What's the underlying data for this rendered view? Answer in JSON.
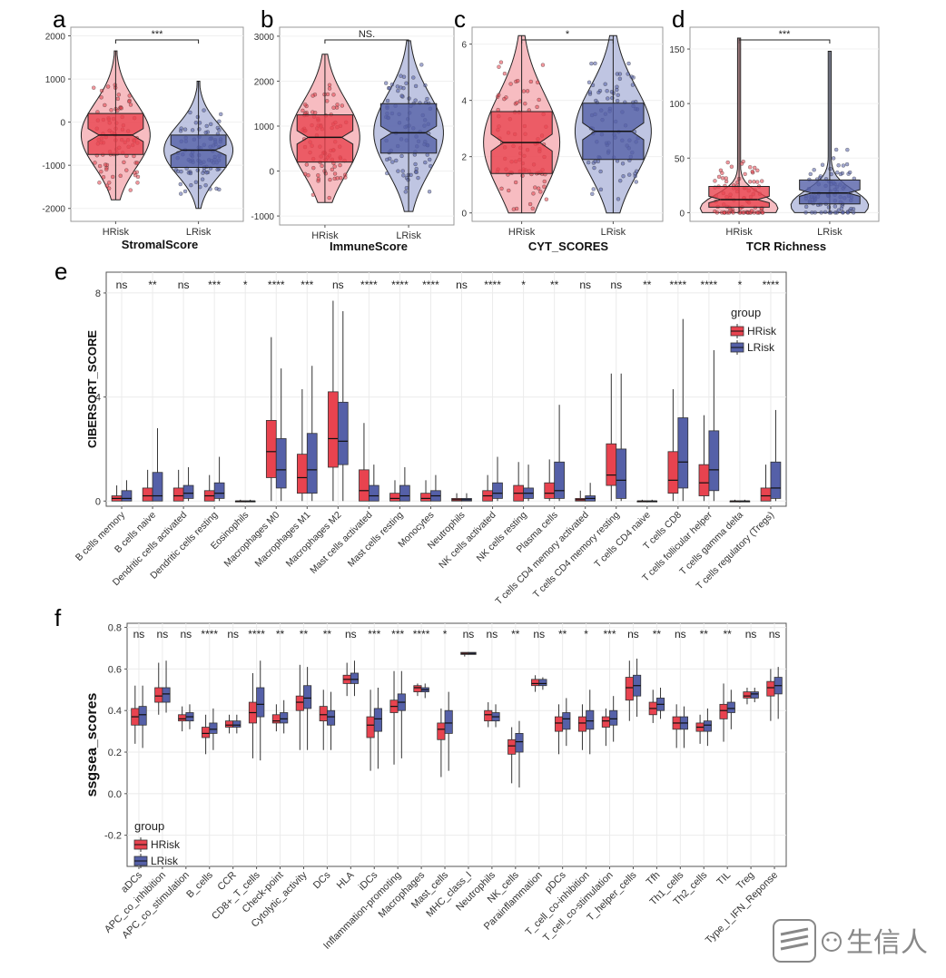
{
  "colors": {
    "hrisk": "#e8434f",
    "lrisk": "#5560a8",
    "hrisk_light": "#f4a6ac",
    "lrisk_light": "#aab2d8",
    "panel_bg": "#ffffff",
    "grid": "#ebebeb"
  },
  "watermark": {
    "text": "生信人",
    "icon": "wechat-logo-icon"
  },
  "panels": {
    "a": {
      "letter": "a",
      "title": "StromalScore",
      "sig": "***",
      "categories": [
        "HRisk",
        "LRisk"
      ],
      "yticks": [
        -2000,
        -1000,
        0,
        1000,
        2000
      ],
      "ylim": [
        -2300,
        2200
      ],
      "groups": [
        {
          "name": "HRisk",
          "min": -1800,
          "q1": -750,
          "median": -300,
          "q3": 200,
          "max": 1650,
          "notch": 150
        },
        {
          "name": "LRisk",
          "min": -2000,
          "q1": -1050,
          "median": -650,
          "q3": -300,
          "max": 950,
          "notch": 120
        }
      ]
    },
    "b": {
      "letter": "b",
      "title": "ImmuneScore",
      "sig": "NS.",
      "categories": [
        "HRisk",
        "LRisk"
      ],
      "yticks": [
        -1000,
        0,
        1000,
        2000,
        3000
      ],
      "ylim": [
        -1200,
        3200
      ],
      "groups": [
        {
          "name": "HRisk",
          "min": -700,
          "q1": 200,
          "median": 750,
          "q3": 1250,
          "max": 2600,
          "notch": 150
        },
        {
          "name": "LRisk",
          "min": -900,
          "q1": 400,
          "median": 850,
          "q3": 1500,
          "max": 2900,
          "notch": 150
        }
      ]
    },
    "c": {
      "letter": "c",
      "title": "CYT_SCORES",
      "sig": "*",
      "categories": [
        "HRisk",
        "LRisk"
      ],
      "yticks": [
        0,
        2,
        4,
        6
      ],
      "ylim": [
        -0.3,
        6.6
      ],
      "groups": [
        {
          "name": "HRisk",
          "min": 0,
          "q1": 1.4,
          "median": 2.5,
          "q3": 3.6,
          "max": 6.3,
          "notch": 0.3
        },
        {
          "name": "LRisk",
          "min": 0,
          "q1": 1.9,
          "median": 2.9,
          "q3": 3.9,
          "max": 6.3,
          "notch": 0.3
        }
      ]
    },
    "d": {
      "letter": "d",
      "title": "TCR Richness",
      "sig": "***",
      "categories": [
        "HRisk",
        "LRisk"
      ],
      "yticks": [
        0,
        50,
        100,
        150
      ],
      "ylim": [
        -8,
        170
      ],
      "groups": [
        {
          "name": "HRisk",
          "min": 0,
          "q1": 5,
          "median": 12,
          "q3": 24,
          "max": 160,
          "notch": 3
        },
        {
          "name": "LRisk",
          "min": 0,
          "q1": 8,
          "median": 18,
          "q3": 30,
          "max": 148,
          "notch": 3
        }
      ]
    }
  },
  "panel_e": {
    "letter": "e",
    "ylabel": "CIBERSORT_SCORE",
    "yticks": [
      0,
      4,
      8
    ],
    "ylim": [
      -0.2,
      8.8
    ],
    "legend": {
      "title": "group",
      "items": [
        "HRisk",
        "LRisk"
      ]
    },
    "categories": [
      "B cells memory",
      "B cells naive",
      "Dendritic cells activated",
      "Dendritic cells resting",
      "Eosinophils",
      "Macrophages M0",
      "Macrophages M1",
      "Macrophages M2",
      "Mast cells activated",
      "Mast cells resting",
      "Monocytes",
      "Neutrophils",
      "NK cells activated",
      "NK cells resting",
      "Plasma cells",
      "T cells CD4 memory activated",
      "T cells CD4 memory resting",
      "T cells CD4 naive",
      "T cells CD8",
      "T cells follicular helper",
      "T cells gamma delta",
      "T cells regulatory (Tregs)"
    ],
    "sig": [
      "ns",
      "**",
      "ns",
      "***",
      "*",
      "****",
      "***",
      "ns",
      "****",
      "****",
      "****",
      "ns",
      "****",
      "*",
      "**",
      "ns",
      "ns",
      "**",
      "****",
      "****",
      "*",
      "****"
    ],
    "hrisk": [
      [
        0,
        0,
        0.1,
        0.2,
        0.6
      ],
      [
        0,
        0,
        0.2,
        0.5,
        1.2
      ],
      [
        0,
        0,
        0.2,
        0.5,
        1.2
      ],
      [
        0,
        0,
        0.2,
        0.4,
        1.0
      ],
      [
        0,
        0,
        0,
        0,
        0.05
      ],
      [
        0,
        0.9,
        1.9,
        3.1,
        6.3
      ],
      [
        0,
        0.3,
        0.9,
        1.8,
        4.3
      ],
      [
        0,
        1.3,
        2.4,
        4.2,
        7.7
      ],
      [
        0,
        0,
        0.4,
        1.2,
        3.0
      ],
      [
        0,
        0,
        0.1,
        0.3,
        0.8
      ],
      [
        0,
        0,
        0.1,
        0.3,
        0.8
      ],
      [
        0,
        0,
        0.05,
        0.1,
        0.3
      ],
      [
        0,
        0,
        0.2,
        0.4,
        1.0
      ],
      [
        0,
        0,
        0.3,
        0.6,
        1.5
      ],
      [
        0,
        0.1,
        0.3,
        0.7,
        1.6
      ],
      [
        0,
        0,
        0.05,
        0.1,
        0.4
      ],
      [
        0,
        0.6,
        1.0,
        2.2,
        4.9
      ],
      [
        0,
        0,
        0,
        0,
        0.05
      ],
      [
        0,
        0.3,
        0.8,
        1.9,
        4.3
      ],
      [
        0,
        0.2,
        0.7,
        1.4,
        3.3
      ],
      [
        0,
        0,
        0,
        0,
        0.05
      ],
      [
        0,
        0,
        0.2,
        0.5,
        1.4
      ]
    ],
    "lrisk": [
      [
        0,
        0,
        0.1,
        0.4,
        0.8
      ],
      [
        0,
        0,
        0.2,
        1.1,
        2.8
      ],
      [
        0,
        0.1,
        0.3,
        0.6,
        1.3
      ],
      [
        0,
        0.1,
        0.3,
        0.7,
        1.7
      ],
      [
        0,
        0,
        0,
        0,
        0.05
      ],
      [
        0,
        0.5,
        1.2,
        2.4,
        5.1
      ],
      [
        0,
        0.3,
        1.2,
        2.6,
        5.2
      ],
      [
        0,
        1.4,
        2.3,
        3.8,
        7.3
      ],
      [
        0,
        0,
        0.2,
        0.6,
        1.4
      ],
      [
        0,
        0,
        0.2,
        0.6,
        1.3
      ],
      [
        0,
        0,
        0.2,
        0.4,
        1.0
      ],
      [
        0,
        0,
        0.05,
        0.1,
        0.3
      ],
      [
        0,
        0.1,
        0.3,
        0.7,
        1.7
      ],
      [
        0,
        0.1,
        0.3,
        0.5,
        1.4
      ],
      [
        0,
        0.1,
        0.4,
        1.5,
        3.7
      ],
      [
        0,
        0,
        0.1,
        0.2,
        0.7
      ],
      [
        0,
        0.1,
        0.8,
        2.0,
        4.9
      ],
      [
        0,
        0,
        0,
        0,
        0.05
      ],
      [
        0,
        0.5,
        1.5,
        3.2,
        7.0
      ],
      [
        0,
        0.4,
        1.2,
        2.7,
        5.8
      ],
      [
        0,
        0,
        0,
        0,
        0.05
      ],
      [
        0,
        0.1,
        0.5,
        1.5,
        3.5
      ]
    ]
  },
  "panel_f": {
    "letter": "f",
    "ylabel": "ssgsea_scores",
    "yticks": [
      -0.2,
      0.0,
      0.2,
      0.4,
      0.6,
      0.8
    ],
    "ylim": [
      -0.35,
      0.82
    ],
    "legend": {
      "title": "group",
      "items": [
        "HRisk",
        "LRisk"
      ]
    },
    "categories": [
      "aDCs",
      "APC_co_inhibition",
      "APC_co_stimulation",
      "B_cells",
      "CCR",
      "CD8+_T_cells",
      "Check-point",
      "Cytolytic_activity",
      "DCs",
      "HLA",
      "iDCs",
      "Inflammation-promoting",
      "Macrophages",
      "Mast_cells",
      "MHC_class_I",
      "Neutrophils",
      "NK_cells",
      "Parainflammation",
      "pDCs",
      "T_cell_co-inhibition",
      "T_cell_co-stimulation",
      "T_helper_cells",
      "Tfh",
      "Th1_cells",
      "Th2_cells",
      "TIL",
      "Treg",
      "Type_I_IFN_Reponse"
    ],
    "sig": [
      "ns",
      "ns",
      "ns",
      "****",
      "ns",
      "****",
      "**",
      "**",
      "**",
      "ns",
      "***",
      "***",
      "****",
      "*",
      "ns",
      "ns",
      "**",
      "ns",
      "**",
      "*",
      "***",
      "ns",
      "**",
      "ns",
      "**",
      "**",
      "ns",
      "ns"
    ],
    "hrisk": [
      [
        0.24,
        0.33,
        0.37,
        0.41,
        0.52
      ],
      [
        0.38,
        0.44,
        0.47,
        0.51,
        0.63
      ],
      [
        0.3,
        0.35,
        0.36,
        0.38,
        0.42
      ],
      [
        0.19,
        0.27,
        0.29,
        0.32,
        0.38
      ],
      [
        0.29,
        0.32,
        0.33,
        0.35,
        0.38
      ],
      [
        0.17,
        0.34,
        0.39,
        0.44,
        0.58
      ],
      [
        0.3,
        0.34,
        0.35,
        0.38,
        0.43
      ],
      [
        0.21,
        0.4,
        0.44,
        0.47,
        0.62
      ],
      [
        0.21,
        0.35,
        0.38,
        0.42,
        0.5
      ],
      [
        0.47,
        0.53,
        0.55,
        0.57,
        0.63
      ],
      [
        0.11,
        0.27,
        0.33,
        0.37,
        0.5
      ],
      [
        0.14,
        0.39,
        0.42,
        0.45,
        0.59
      ],
      [
        0.47,
        0.49,
        0.51,
        0.52,
        0.53
      ],
      [
        0.08,
        0.26,
        0.31,
        0.34,
        0.41
      ],
      [
        0.66,
        0.67,
        0.675,
        0.68,
        0.68
      ],
      [
        0.32,
        0.35,
        0.38,
        0.4,
        0.44
      ],
      [
        0.05,
        0.19,
        0.23,
        0.26,
        0.32
      ],
      [
        0.49,
        0.52,
        0.53,
        0.55,
        0.57
      ],
      [
        0.19,
        0.3,
        0.34,
        0.37,
        0.43
      ],
      [
        0.21,
        0.3,
        0.34,
        0.37,
        0.43
      ],
      [
        0.23,
        0.32,
        0.35,
        0.37,
        0.41
      ],
      [
        0.35,
        0.45,
        0.51,
        0.56,
        0.64
      ],
      [
        0.34,
        0.38,
        0.41,
        0.44,
        0.5
      ],
      [
        0.22,
        0.31,
        0.34,
        0.37,
        0.43
      ],
      [
        0.24,
        0.3,
        0.32,
        0.34,
        0.38
      ],
      [
        0.25,
        0.36,
        0.4,
        0.43,
        0.53
      ],
      [
        0.43,
        0.46,
        0.47,
        0.49,
        0.51
      ],
      [
        0.35,
        0.47,
        0.51,
        0.54,
        0.6
      ]
    ],
    "lrisk": [
      [
        0.22,
        0.33,
        0.38,
        0.42,
        0.52
      ],
      [
        0.39,
        0.44,
        0.48,
        0.51,
        0.64
      ],
      [
        0.31,
        0.35,
        0.37,
        0.39,
        0.43
      ],
      [
        0.21,
        0.29,
        0.31,
        0.34,
        0.41
      ],
      [
        0.29,
        0.32,
        0.33,
        0.35,
        0.38
      ],
      [
        0.16,
        0.37,
        0.43,
        0.51,
        0.64
      ],
      [
        0.29,
        0.34,
        0.36,
        0.39,
        0.45
      ],
      [
        0.21,
        0.41,
        0.46,
        0.52,
        0.61
      ],
      [
        0.21,
        0.33,
        0.37,
        0.4,
        0.49
      ],
      [
        0.47,
        0.53,
        0.55,
        0.58,
        0.64
      ],
      [
        0.12,
        0.3,
        0.36,
        0.41,
        0.51
      ],
      [
        0.17,
        0.4,
        0.44,
        0.48,
        0.59
      ],
      [
        0.46,
        0.49,
        0.5,
        0.51,
        0.53
      ],
      [
        0.11,
        0.29,
        0.34,
        0.4,
        0.49
      ],
      [
        0.67,
        0.67,
        0.675,
        0.68,
        0.68
      ],
      [
        0.32,
        0.35,
        0.37,
        0.39,
        0.43
      ],
      [
        0.03,
        0.2,
        0.25,
        0.29,
        0.35
      ],
      [
        0.5,
        0.52,
        0.53,
        0.55,
        0.56
      ],
      [
        0.23,
        0.31,
        0.36,
        0.39,
        0.46
      ],
      [
        0.19,
        0.31,
        0.35,
        0.4,
        0.5
      ],
      [
        0.25,
        0.33,
        0.36,
        0.4,
        0.47
      ],
      [
        0.37,
        0.47,
        0.52,
        0.57,
        0.65
      ],
      [
        0.36,
        0.4,
        0.43,
        0.46,
        0.51
      ],
      [
        0.22,
        0.31,
        0.34,
        0.37,
        0.42
      ],
      [
        0.23,
        0.3,
        0.33,
        0.35,
        0.41
      ],
      [
        0.31,
        0.39,
        0.41,
        0.44,
        0.5
      ],
      [
        0.44,
        0.46,
        0.48,
        0.49,
        0.51
      ],
      [
        0.36,
        0.48,
        0.52,
        0.56,
        0.61
      ]
    ]
  }
}
